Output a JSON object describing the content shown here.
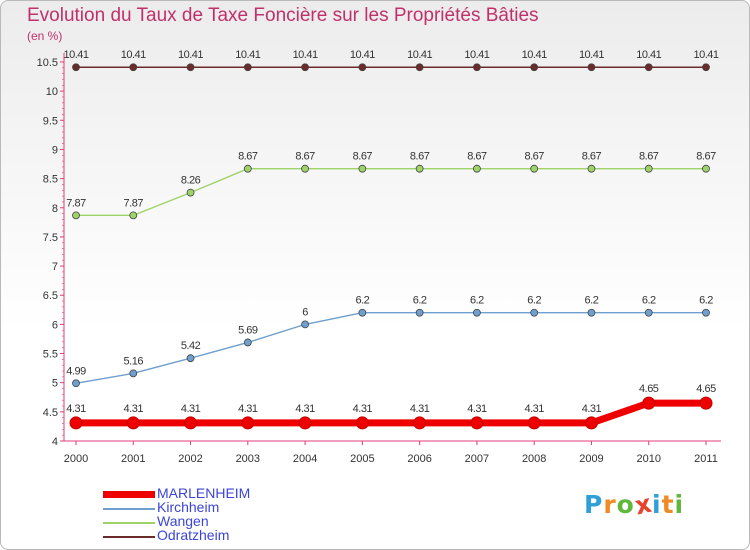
{
  "title": "Evolution du Taux de Taxe Foncière sur les Propriétés Bâties",
  "unit": "(en %)",
  "logo": {
    "letters": [
      "P",
      "r",
      "o",
      "x",
      "i",
      "t",
      "i"
    ],
    "colors": [
      "#2f9fd8",
      "#f08a24",
      "#5fb83c",
      "#e8432d",
      "#2f9fd8",
      "#f08a24",
      "#5fb83c"
    ]
  },
  "chart_data": {
    "type": "line",
    "x": [
      "2000",
      "2001",
      "2002",
      "2003",
      "2004",
      "2005",
      "2006",
      "2007",
      "2008",
      "2009",
      "2010",
      "2011"
    ],
    "ylim": [
      4,
      10.5
    ],
    "yticks": [
      "4",
      "4.5",
      "5",
      "5.5",
      "6",
      "6.5",
      "7",
      "7.5",
      "8",
      "8.5",
      "9",
      "9.5",
      "10",
      "10.5"
    ],
    "grid": false,
    "legend_position": "bottom-left",
    "series": [
      {
        "name": "Odratzheim",
        "color": "#6b2b2b",
        "values": [
          10.41,
          10.41,
          10.41,
          10.41,
          10.41,
          10.41,
          10.41,
          10.41,
          10.41,
          10.41,
          10.41,
          10.41
        ],
        "labels": [
          "10.41",
          "10.41",
          "10.41",
          "10.41",
          "10.41",
          "10.41",
          "10.41",
          "10.41",
          "10.41",
          "10.41",
          "10.41",
          "10.41"
        ]
      },
      {
        "name": "Wangen",
        "color": "#9ed36a",
        "values": [
          7.87,
          7.87,
          8.26,
          8.67,
          8.67,
          8.67,
          8.67,
          8.67,
          8.67,
          8.67,
          8.67,
          8.67
        ],
        "labels": [
          "7.87",
          "7.87",
          "8.26",
          "8.67",
          "8.67",
          "8.67",
          "8.67",
          "8.67",
          "8.67",
          "8.67",
          "8.67",
          "8.67"
        ]
      },
      {
        "name": "Kirchheim",
        "color": "#6f9fcf",
        "values": [
          4.99,
          5.16,
          5.42,
          5.69,
          6,
          6.2,
          6.2,
          6.2,
          6.2,
          6.2,
          6.2,
          6.2
        ],
        "labels": [
          "4.99",
          "5.16",
          "5.42",
          "5.69",
          "6",
          "6.2",
          "6.2",
          "6.2",
          "6.2",
          "6.2",
          "6.2",
          "6.2"
        ]
      },
      {
        "name": "MARLENHEIM",
        "color": "#ee0000",
        "values": [
          4.31,
          4.31,
          4.31,
          4.31,
          4.31,
          4.31,
          4.31,
          4.31,
          4.31,
          4.31,
          4.65,
          4.65
        ],
        "labels": [
          "4.31",
          "4.31",
          "4.31",
          "4.31",
          "4.31",
          "4.31",
          "4.31",
          "4.31",
          "4.31",
          "4.31",
          "4.65",
          "4.65"
        ]
      }
    ],
    "legend_order": [
      "MARLENHEIM",
      "Kirchheim",
      "Wangen",
      "Odratzheim"
    ]
  }
}
